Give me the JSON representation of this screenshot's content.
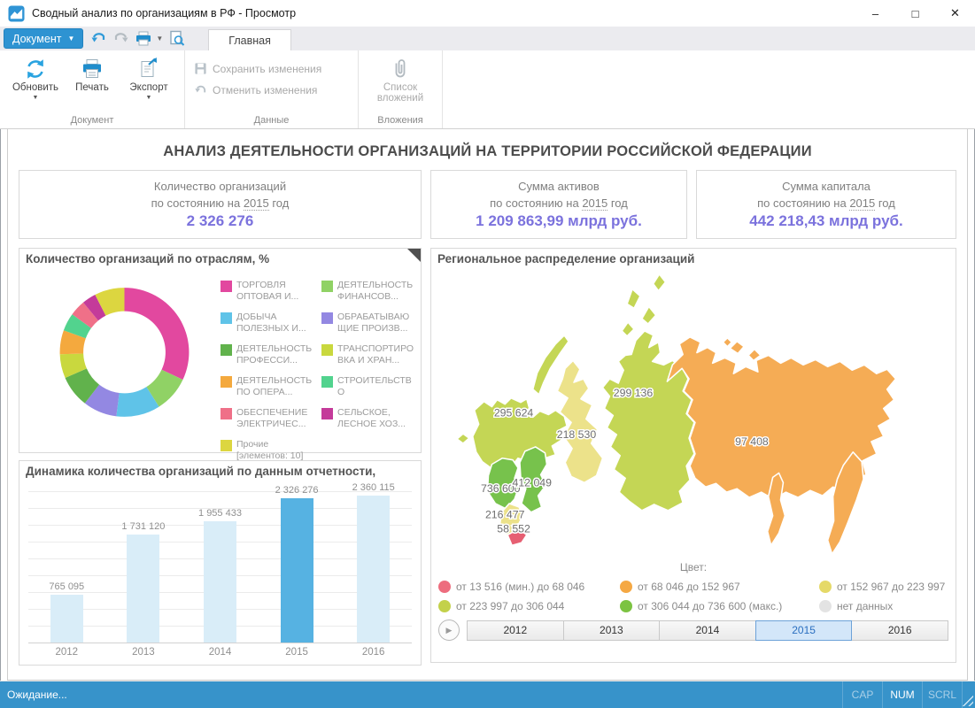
{
  "window": {
    "title": "Сводный анализ по организациям в РФ - Просмотр",
    "controls": {
      "minimize": "–",
      "maximize": "□",
      "close": "✕"
    }
  },
  "toolbar": {
    "document_button": "Документ",
    "active_tab": "Главная"
  },
  "ribbon": {
    "groups": [
      {
        "label": "Документ",
        "buttons": [
          {
            "label": "Обновить",
            "icon": "refresh-icon",
            "dropdown": true,
            "enabled": true
          },
          {
            "label": "Печать",
            "icon": "printer-icon",
            "dropdown": false,
            "enabled": true
          },
          {
            "label": "Экспорт",
            "icon": "export-icon",
            "dropdown": true,
            "enabled": true
          }
        ]
      },
      {
        "label": "Данные",
        "buttons": [
          {
            "label": "Сохранить изменения",
            "icon": "save-icon",
            "enabled": false
          },
          {
            "label": "Отменить изменения",
            "icon": "undo-icon",
            "enabled": false
          }
        ]
      },
      {
        "label": "Вложения",
        "buttons": [
          {
            "label": "Список вложений",
            "icon": "paperclip-icon",
            "enabled": false
          }
        ]
      }
    ]
  },
  "report": {
    "title": "АНАЛИЗ ДЕЯТЕЛЬНОСТИ ОРГАНИЗАЦИЙ НА ТЕРРИТОРИИ РОССИЙСКОЙ ФЕДЕРАЦИИ",
    "value_color": "#7b72dd",
    "kpi_cards": [
      {
        "line1": "Количество организаций",
        "prefix": "по состоянию на ",
        "year": "2015",
        "suffix": " год",
        "value": "2 326 276"
      },
      {
        "line1": "Сумма активов",
        "prefix": "по состоянию на ",
        "year": "2015",
        "suffix": " год",
        "value": "1 209 863,99 млрд руб."
      },
      {
        "line1": "Сумма капитала",
        "prefix": "по состоянию на ",
        "year": "2015",
        "suffix": " год",
        "value": "442 218,43 млрд руб."
      }
    ]
  },
  "chart_data": [
    {
      "type": "pie",
      "donut": true,
      "title": "Количество организаций по отраслям, %",
      "legend_position": "right",
      "segments": [
        {
          "label": "ТОРГОВЛЯ ОПТОВАЯ И...",
          "value": 32,
          "color": "#e2489f"
        },
        {
          "label": "ДЕЯТЕЛЬНОСТЬ ФИНАНСОВ...",
          "value": 9,
          "color": "#90d265"
        },
        {
          "label": "ДОБЫЧА ПОЛЕЗНЫХ И...",
          "value": 11,
          "color": "#5fc3e8"
        },
        {
          "label": "ОБРАБАТЫВАЮЩИЕ ПРОИЗВ...",
          "value": 8.5,
          "color": "#9388e2"
        },
        {
          "label": "ДЕЯТЕЛЬНОСТЬ ПРОФЕССИ...",
          "value": 8,
          "color": "#61b24c"
        },
        {
          "label": "ТРАНСПОРТИРОВКА И ХРАН...",
          "value": 6,
          "color": "#c9d83e"
        },
        {
          "label": "ДЕЯТЕЛЬНОСТЬ ПО ОПЕРА...",
          "value": 6,
          "color": "#f4a93e"
        },
        {
          "label": "СТРОИТЕЛЬСТВО",
          "value": 4.5,
          "color": "#52d38e"
        },
        {
          "label": "ОБЕСПЕЧЕНИЕ ЭЛЕКТРИЧЕС...",
          "value": 4,
          "color": "#ef7088"
        },
        {
          "label": "СЕЛЬСКОЕ, ЛЕСНОЕ ХОЗ...",
          "value": 3.5,
          "color": "#c43b9a"
        },
        {
          "label": "Прочие [элементов: 10]",
          "value": 7.5,
          "color": "#dcd640"
        }
      ]
    },
    {
      "type": "bar",
      "title": "Динамика количества организаций по данным отчетности,",
      "categories": [
        "2012",
        "2013",
        "2014",
        "2015",
        "2016"
      ],
      "values": [
        765095,
        1731120,
        1955433,
        2326276,
        2360115
      ],
      "value_labels": [
        "765 095",
        "1 731 120",
        "1 955 433",
        "2 326 276",
        "2 360 115"
      ],
      "highlight_index": 3,
      "bar_color": "#d9edf8",
      "highlight_color": "#56b2e2",
      "ylim": [
        0,
        2450000
      ],
      "grid": true
    },
    {
      "type": "choropleth-map",
      "title": "Региональное распределение организаций",
      "regions": [
        {
          "name": "northwest",
          "value": "295 624",
          "color_class": "yellowgreen"
        },
        {
          "name": "central",
          "value": "736 600",
          "color_class": "green"
        },
        {
          "name": "volga",
          "value": "412 049",
          "color_class": "green"
        },
        {
          "name": "southern",
          "value": "216 477",
          "color_class": "paleyellow"
        },
        {
          "name": "caucasus",
          "value": "58 552",
          "color_class": "red"
        },
        {
          "name": "ural",
          "value": "218 530",
          "color_class": "paleyellow"
        },
        {
          "name": "siberia",
          "value": "299 136",
          "color_class": "yellowgreen"
        },
        {
          "name": "fareast",
          "value": "97 408",
          "color_class": "orange"
        }
      ],
      "palette": {
        "red": "#e65f72",
        "orange": "#f5ac55",
        "paleyellow": "#ece28a",
        "yellowgreen": "#c4d655",
        "green": "#77c24c",
        "nodata": "#e5e5e5"
      },
      "legend_title": "Цвет:",
      "legend": [
        {
          "color": "#ed6d7e",
          "label": "от 13 516 (мин.) до 68 046"
        },
        {
          "color": "#f5a843",
          "label": "от 68 046 до 152 967"
        },
        {
          "color": "#e5d968",
          "label": "от 152 967 до 223 997"
        },
        {
          "color": "#c3d14b",
          "label": "от 223 997 до 306 044"
        },
        {
          "color": "#7cc342",
          "label": "от 306 044 до 736 600 (макс.)"
        },
        {
          "color": "#e3e3e3",
          "label": "нет данных"
        }
      ],
      "year_tabs": [
        "2012",
        "2013",
        "2014",
        "2015",
        "2016"
      ],
      "selected_year": "2015"
    }
  ],
  "status_bar": {
    "text": "Ожидание...",
    "keys": [
      {
        "label": "CAP",
        "active": false
      },
      {
        "label": "NUM",
        "active": true
      },
      {
        "label": "SCRL",
        "active": false
      }
    ]
  }
}
